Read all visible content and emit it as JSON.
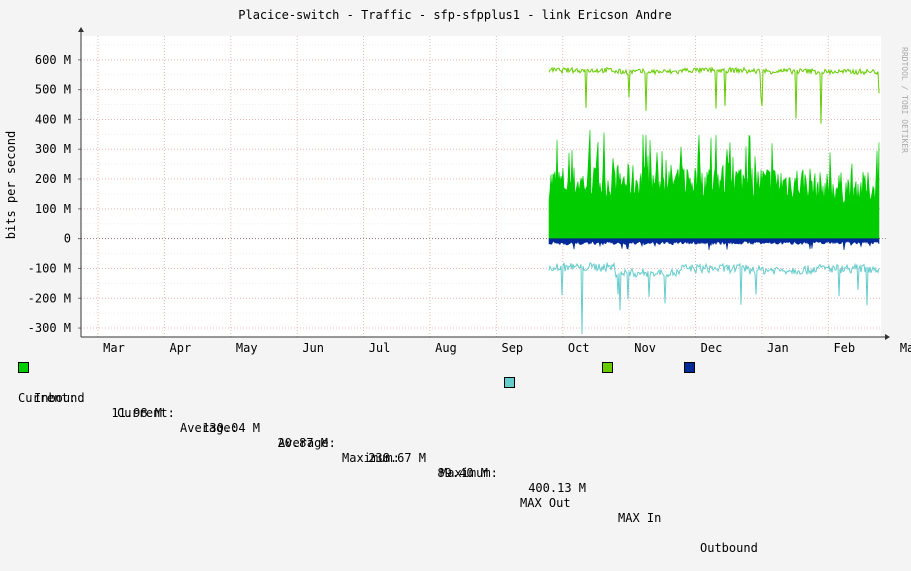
{
  "title": "Placice-switch - Traffic - sfp-sfpplus1 - link Ericson Andre",
  "watermark": "RRDTOOL / TOBI OETIKER",
  "colors": {
    "background": "#f4f4f4",
    "canvas": "#ffffff",
    "grid": "#e8b8b8",
    "inbound": "#00cc00",
    "max_in": "#66cc00",
    "outbound": "#002a97",
    "max_out": "#66cccc"
  },
  "legend": {
    "inbound": {
      "name": "Inbound",
      "current_label": "Current:",
      "current": "130.04 M",
      "average_label": "Average:",
      "average": "238.67 M",
      "maximum_label": "Maximum:",
      "maximum": "400.13 M"
    },
    "max_in": {
      "name": "MAX In"
    },
    "outbound": {
      "name": "Outbound",
      "current_label": "Current:",
      "current": "11.98 M",
      "average_label": "Average:",
      "average": "20.87 M",
      "maximum_label": "Maximum:",
      "maximum": "89.40 M"
    },
    "max_out": {
      "name": "MAX Out"
    }
  },
  "chart_data": {
    "type": "area",
    "title": "Placice-switch - Traffic - sfp-sfpplus1 - link Ericson Andre",
    "ylabel": "bits per second",
    "xlabel": "",
    "ylim": [
      -330,
      680
    ],
    "y_ticks": [
      {
        "value": 600,
        "label": "600 M"
      },
      {
        "value": 500,
        "label": "500 M"
      },
      {
        "value": 400,
        "label": "400 M"
      },
      {
        "value": 300,
        "label": "300 M"
      },
      {
        "value": 200,
        "label": "200 M"
      },
      {
        "value": 100,
        "label": "100 M"
      },
      {
        "value": 0,
        "label": "0"
      },
      {
        "value": -100,
        "label": "-100 M"
      },
      {
        "value": -200,
        "label": "-200 M"
      },
      {
        "value": -300,
        "label": "-300 M"
      }
    ],
    "x_ticks": [
      "Mar",
      "Apr",
      "May",
      "Jun",
      "Jul",
      "Aug",
      "Sep",
      "Oct",
      "Nov",
      "Dec",
      "Jan",
      "Feb",
      "Mar"
    ],
    "grid": true,
    "legend_position": "bottom",
    "months": [
      "Oct",
      "Nov",
      "Dec",
      "Jan",
      "Feb"
    ],
    "series": [
      {
        "name": "Inbound",
        "unit": "M",
        "values": [
          215,
          220,
          225,
          215,
          195
        ]
      },
      {
        "name": "MAX In",
        "unit": "M",
        "values": [
          565,
          560,
          565,
          562,
          560
        ]
      },
      {
        "name": "Outbound",
        "unit": "M",
        "values": [
          -15,
          -15,
          -14,
          -14,
          -13
        ]
      },
      {
        "name": "MAX Out",
        "unit": "M",
        "values": [
          -95,
          -115,
          -100,
          -105,
          -100
        ]
      }
    ]
  }
}
